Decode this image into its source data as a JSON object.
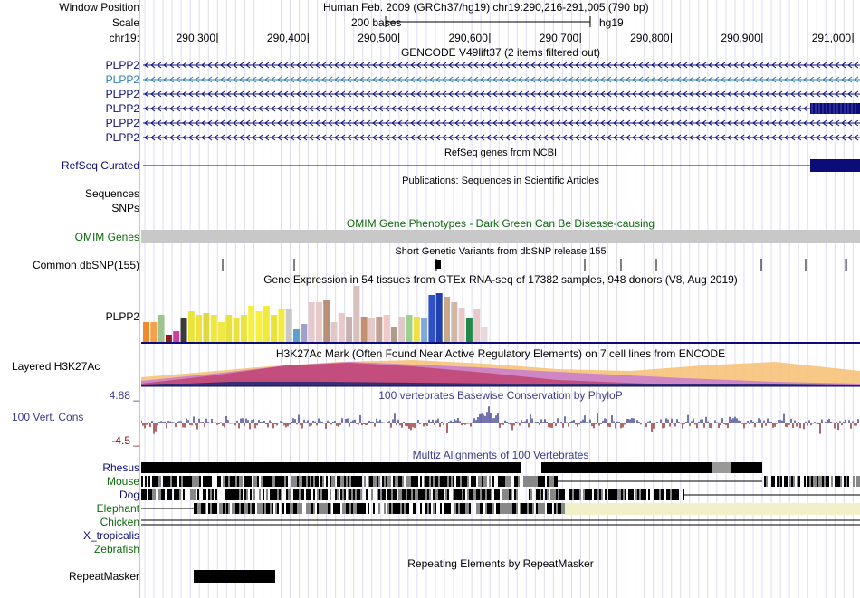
{
  "header": {
    "window_position_label": "Window Position",
    "window_position_value": "Human Feb. 2009 (GRCh37/hg19)   chr19:290,216-291,005 (790 bp)",
    "scale_label": "Scale",
    "scale_text": "200 bases",
    "scale_assembly": "hg19",
    "chrom_label": "chr19:",
    "ruler_ticks": [
      "290,300",
      "290,400",
      "290,500",
      "290,600",
      "290,700",
      "290,800",
      "290,900",
      "291,000"
    ]
  },
  "gencode": {
    "title": "GENCODE V49lift37 (2 items filtered out)",
    "transcripts": [
      {
        "label": "PLPP2",
        "color": "#0c0c78"
      },
      {
        "label": "PLPP2",
        "color": "#2f7fa8"
      },
      {
        "label": "PLPP2",
        "color": "#0c0c78"
      },
      {
        "label": "PLPP2",
        "color": "#0c0c78"
      },
      {
        "label": "PLPP2",
        "color": "#0c0c78"
      },
      {
        "label": "PLPP2",
        "color": "#0c0c78"
      }
    ]
  },
  "refseq": {
    "title": "RefSeq genes from NCBI",
    "label": "RefSeq Curated"
  },
  "publications": {
    "title": "Publications: Sequences in Scientific Articles"
  },
  "sequences": {
    "label": "Sequences"
  },
  "snps": {
    "label": "SNPs"
  },
  "omim": {
    "title": "OMIM Gene Phenotypes - Dark Green Can Be Disease-causing",
    "label": "OMIM Genes"
  },
  "dbsnp": {
    "title": "Short Genetic Variants from dbSNP release 155",
    "label": "Common dbSNP(155)"
  },
  "gtex": {
    "title": "Gene Expression in 54 tissues from GTEx RNA-seq of 17382 samples, 948 donors (V8, Aug 2019)",
    "label": "PLPP2"
  },
  "h3k27ac": {
    "title": "H3K27Ac Mark (Often Found Near Active Regulatory Elements) on 7 cell lines from ENCODE",
    "label": "Layered H3K27Ac"
  },
  "conservation": {
    "title": "100 vertebrates Basewise Conservation by PhyloP",
    "label": "100 Vert. Cons",
    "max_label": "4.88 _",
    "min_label": "-4.5 _"
  },
  "multiz": {
    "title": "Multiz Alignments of 100 Vertebrates",
    "species": [
      {
        "name": "Rhesus",
        "color": "#0c0c78"
      },
      {
        "name": "Mouse",
        "color": "#0c6a0c"
      },
      {
        "name": "Dog",
        "color": "#0c0c78"
      },
      {
        "name": "Elephant",
        "color": "#0c6a0c"
      },
      {
        "name": "Chicken",
        "color": "#0c6a0c"
      },
      {
        "name": "X_tropicalis",
        "color": "#0c0c78"
      },
      {
        "name": "Zebrafish",
        "color": "#0c6a0c"
      }
    ]
  },
  "repeatmasker": {
    "title": "Repeating Elements by RepeatMasker",
    "label": "RepeatMasker"
  },
  "colors": {
    "gene_navy": "#0c0c78",
    "gene_teal": "#2f7fa8",
    "omim_gray": "#c8c8c8",
    "grid_line": "#dcdcf0",
    "cons_positive": "#3a3a8c",
    "cons_negative": "#8c2a2a",
    "elephant_fill": "#f2f0c8"
  }
}
